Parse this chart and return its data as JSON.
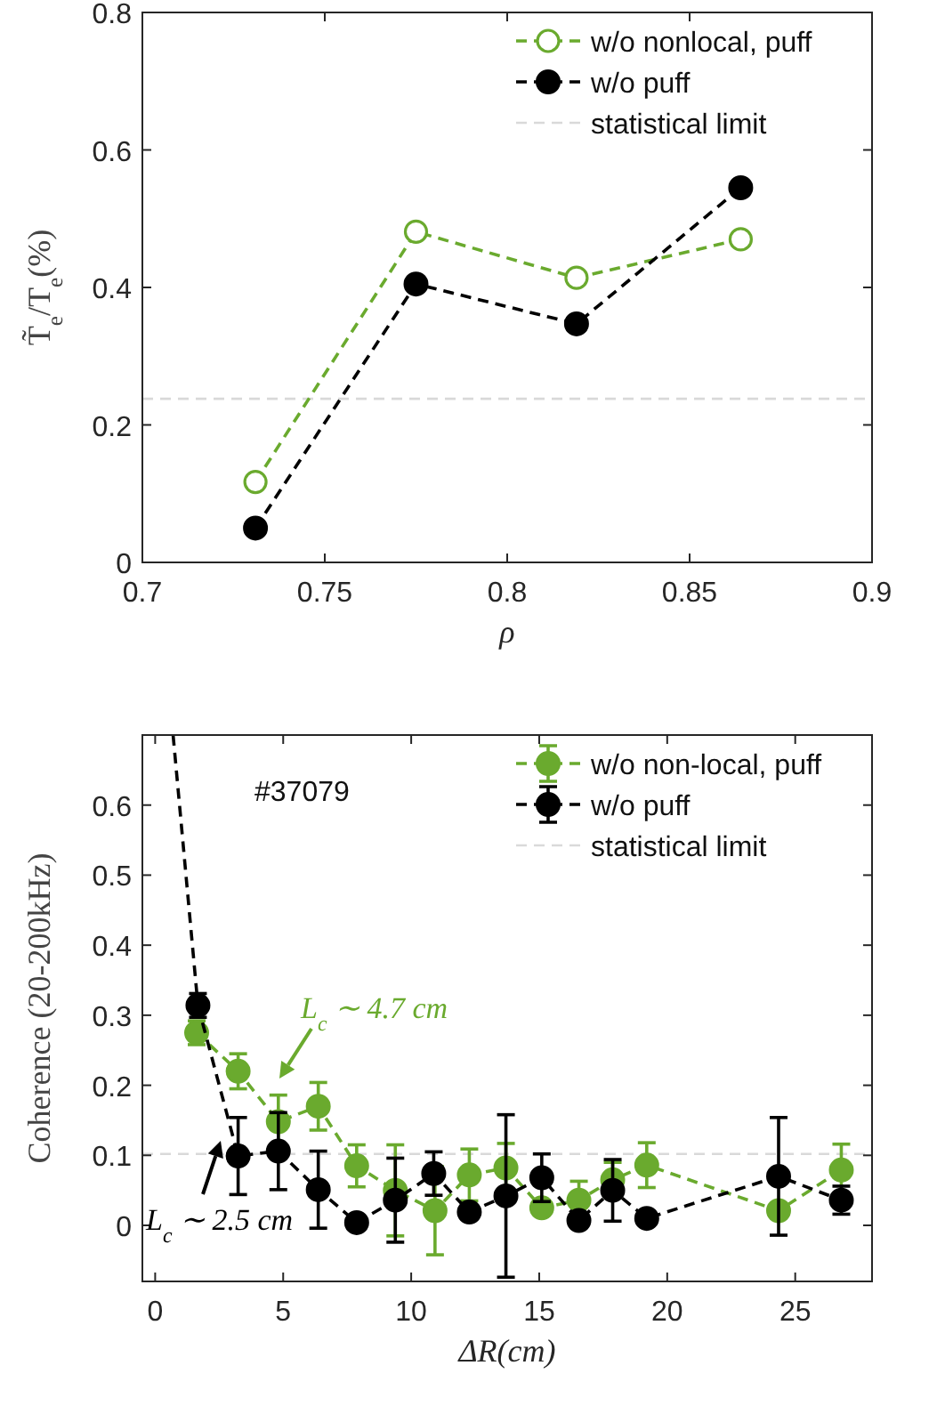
{
  "chart_data": [
    {
      "type": "line",
      "ylabel": "T̃$_{e}$/T$_{e}$(%)",
      "xlabel": "ρ",
      "xlim": [
        0.7,
        0.9
      ],
      "xticks": [
        0.7,
        0.75,
        0.8,
        0.85,
        0.9
      ],
      "ylim": [
        0,
        0.8
      ],
      "yticks": [
        0,
        0.2,
        0.4,
        0.6,
        0.8
      ],
      "grid": false,
      "legend": "top right",
      "marker": "circle",
      "line_style": "dashed",
      "series": [
        {
          "name": "w/o nonlocal, puff",
          "color": "#6aaa2e",
          "marker": "circle-open",
          "x": [
            0.731,
            0.775,
            0.819,
            0.864
          ],
          "values": [
            0.117,
            0.481,
            0.414,
            0.47
          ]
        },
        {
          "name": "w/o puff",
          "color": "#000000",
          "x": [
            0.731,
            0.775,
            0.819,
            0.864
          ],
          "values": [
            0.05,
            0.405,
            0.347,
            0.545
          ]
        }
      ],
      "ref_lines": [
        {
          "axis": "y",
          "value": 0.238,
          "label": "statistical limit",
          "color": "#d9d9d9",
          "line_style": "dashed"
        }
      ]
    },
    {
      "type": "line",
      "ylabel": "Coherence (20-200kHz)",
      "xlabel": "ΔR(cm)",
      "xlim": [
        -0.5,
        28
      ],
      "xticks": [
        0,
        5,
        10,
        15,
        20,
        25
      ],
      "ylim": [
        -0.08,
        0.7
      ],
      "yticks": [
        0,
        0.1,
        0.2,
        0.3,
        0.4,
        0.5,
        0.6
      ],
      "grid": false,
      "legend": "top right",
      "marker": "circle",
      "line_style": "dashed",
      "series": [
        {
          "name": "w/o non-local, puff",
          "color": "#6aaa2e",
          "x": [
            1.62,
            3.24,
            4.81,
            6.37,
            7.87,
            9.38,
            10.93,
            12.27,
            13.7,
            15.1,
            16.55,
            17.87,
            19.2,
            24.35,
            26.8
          ],
          "values": [
            0.275,
            0.22,
            0.148,
            0.17,
            0.085,
            0.05,
            0.021,
            0.072,
            0.082,
            0.025,
            0.036,
            0.065,
            0.086,
            0.021,
            0.079
          ],
          "errors": [
            0.017,
            0.025,
            0.038,
            0.034,
            0.03,
            0.065,
            0.063,
            0.037,
            0.035,
            0.01,
            0.027,
            0.025,
            0.032,
            0.01,
            0.037
          ]
        },
        {
          "name": "w/o puff",
          "color": "#000000",
          "x": [
            1.67,
            3.24,
            4.81,
            6.37,
            7.87,
            9.38,
            10.88,
            12.27,
            13.7,
            15.1,
            16.55,
            17.87,
            19.2,
            24.35,
            26.8
          ],
          "values": [
            0.314,
            0.099,
            0.106,
            0.051,
            0.004,
            0.036,
            0.074,
            0.019,
            0.042,
            0.068,
            0.007,
            0.05,
            0.01,
            0.07,
            0.036
          ],
          "errors": [
            0.017,
            0.055,
            0.055,
            0.055,
            null,
            0.06,
            0.031,
            null,
            0.116,
            0.034,
            null,
            0.044,
            null,
            0.084,
            0.02
          ]
        },
        {
          "color": "#000000",
          "marker": "none",
          "x": [
            0.7,
            1.67
          ],
          "values": [
            0.7,
            0.314
          ]
        }
      ],
      "ref_lines": [
        {
          "axis": "y",
          "value": 0.102,
          "label": "statistical limit",
          "color": "#d9d9d9",
          "line_style": "dashed"
        }
      ],
      "annotations": [
        "#37079",
        "L$_{c}$ ∼ 4.7 cm",
        "L$_{c}$ ∼ 2.5 cm"
      ]
    }
  ]
}
